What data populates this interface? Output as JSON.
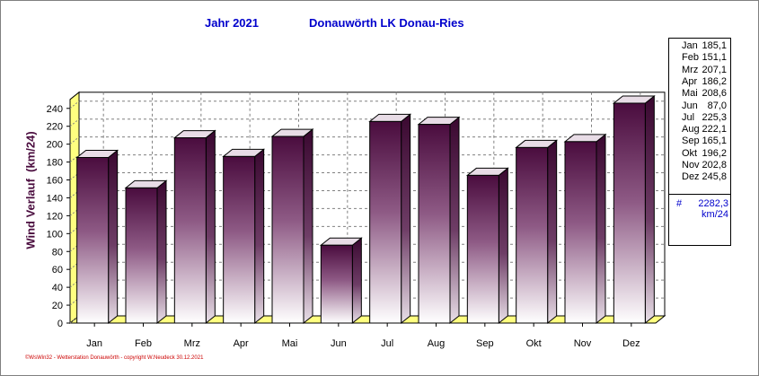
{
  "header": {
    "year_label": "Jahr  2021",
    "station": "Donauwörth LK Donau-Ries"
  },
  "chart_data": {
    "type": "bar",
    "categories": [
      "Jan",
      "Feb",
      "Mrz",
      "Apr",
      "Mai",
      "Jun",
      "Jul",
      "Aug",
      "Sep",
      "Okt",
      "Nov",
      "Dez"
    ],
    "values": [
      185.1,
      151.1,
      207.1,
      186.2,
      208.6,
      87.0,
      225.3,
      222.1,
      165.1,
      196.2,
      202.8,
      245.8
    ],
    "ylabel": "Wind Verlauf  (km/24)",
    "ylim": [
      0,
      250
    ],
    "yticks": [
      0,
      20,
      40,
      60,
      80,
      100,
      120,
      140,
      160,
      180,
      200,
      220,
      240
    ],
    "grid": true,
    "bar_style": "3d",
    "colors": {
      "bar_top": "#4a0c3e",
      "bar_bottom": "#ffffff",
      "bar_side": "#3a0830",
      "bar_cap": "#e8dce6",
      "axis_wall": "#ffff80",
      "title": "#0000cc"
    }
  },
  "legend": {
    "rows": [
      {
        "month": "Jan",
        "value": "185,1"
      },
      {
        "month": "Feb",
        "value": "151,1"
      },
      {
        "month": "Mrz",
        "value": "207,1"
      },
      {
        "month": "Apr",
        "value": "186,2"
      },
      {
        "month": "Mai",
        "value": "208,6"
      },
      {
        "month": "Jun",
        "value": "87,0"
      },
      {
        "month": "Jul",
        "value": "225,3"
      },
      {
        "month": "Aug",
        "value": "222,1"
      },
      {
        "month": "Sep",
        "value": "165,1"
      },
      {
        "month": "Okt",
        "value": "196,2"
      },
      {
        "month": "Nov",
        "value": "202,8"
      },
      {
        "month": "Dez",
        "value": "245,8"
      }
    ],
    "total_symbol": "#",
    "total_value": "2282,3",
    "total_unit": "km/24"
  },
  "footer": "©WsWin32 - Wetterstation Donauwörth - copyright W.Neudeck 30.12.2021"
}
